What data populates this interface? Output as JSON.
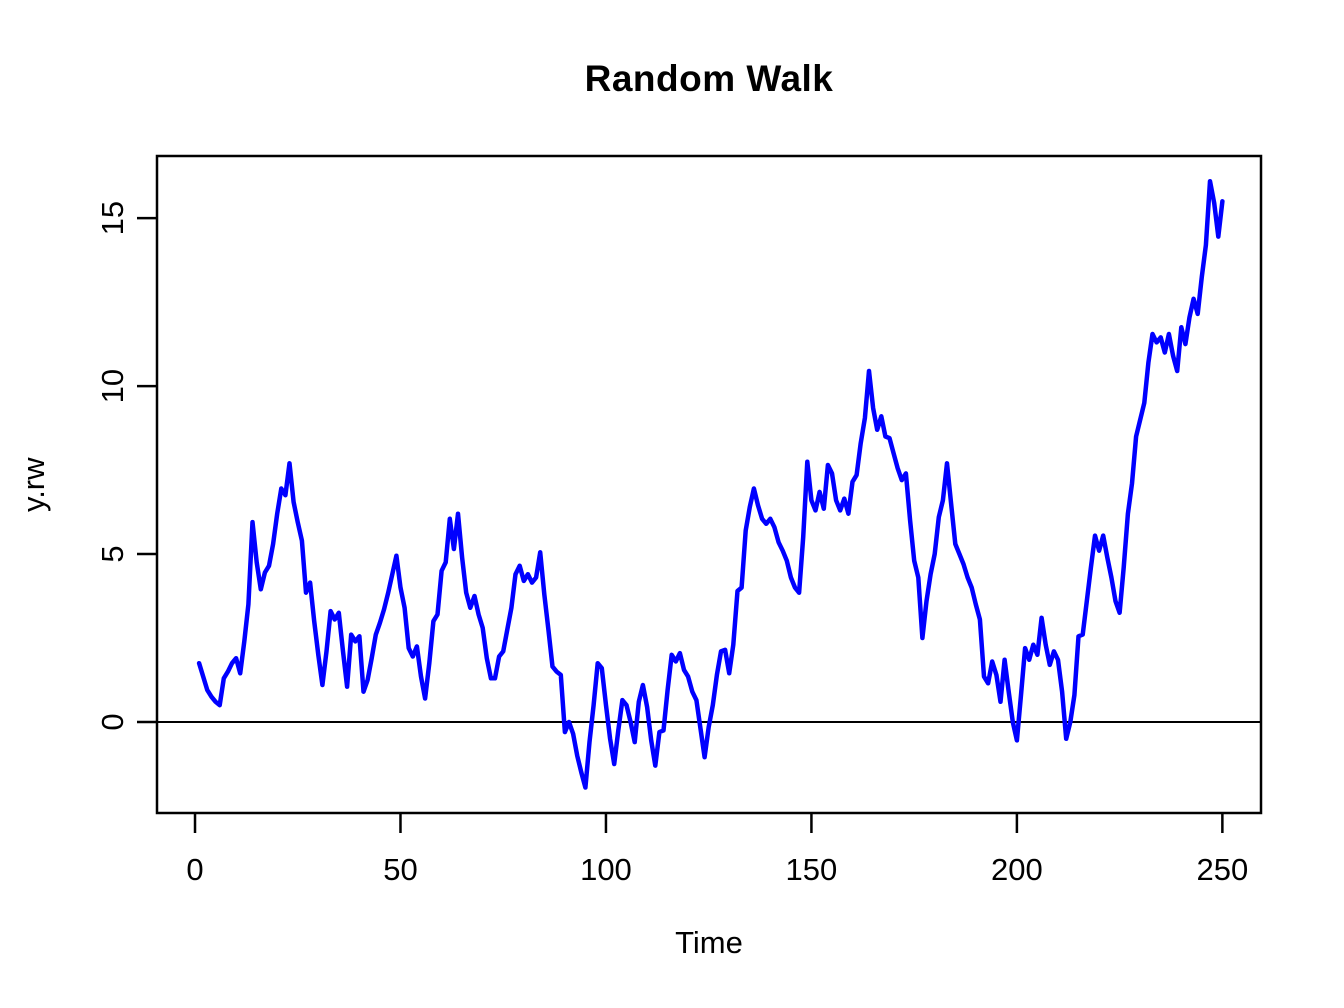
{
  "title": "Random Walk",
  "axes": {
    "x_label": "Time",
    "y_label": "y.rw",
    "x_ticks": [
      0,
      50,
      100,
      150,
      200,
      250
    ],
    "y_ticks": [
      0,
      5,
      10,
      15
    ]
  },
  "styles": {
    "line_color": "#0000FF",
    "axis_color": "#000000",
    "background": "#FFFFFF"
  },
  "chart_data": {
    "type": "line",
    "title": "Random Walk",
    "xlabel": "Time",
    "ylabel": "y.rw",
    "legend": "none",
    "grid": false,
    "x_ticks": [
      0,
      50,
      100,
      150,
      200,
      250
    ],
    "y_ticks": [
      0,
      5,
      10,
      15
    ],
    "xlim": [
      -9.25,
      259.4
    ],
    "ylim": [
      -2.71,
      16.85
    ],
    "hline_y": 0,
    "x_start": 1,
    "x_step": 1,
    "n_points": 250,
    "series": [
      {
        "name": "y.rw",
        "color": "#0000FF",
        "values": [
          1.75,
          1.35,
          0.95,
          0.75,
          0.6,
          0.5,
          1.3,
          1.5,
          1.75,
          1.9,
          1.45,
          2.4,
          3.5,
          5.95,
          4.75,
          3.95,
          4.45,
          4.65,
          5.3,
          6.2,
          6.95,
          6.75,
          7.7,
          6.55,
          5.95,
          5.4,
          3.85,
          4.15,
          3.0,
          2.0,
          1.1,
          2.1,
          3.3,
          3.05,
          3.25,
          2.1,
          1.05,
          2.6,
          2.4,
          2.55,
          0.9,
          1.25,
          1.9,
          2.6,
          2.95,
          3.35,
          3.85,
          4.4,
          4.95,
          4.0,
          3.4,
          2.2,
          1.95,
          2.25,
          1.35,
          0.7,
          1.75,
          3.0,
          3.2,
          4.5,
          4.75,
          6.05,
          5.15,
          6.2,
          4.9,
          3.85,
          3.4,
          3.75,
          3.2,
          2.8,
          1.9,
          1.3,
          1.3,
          1.95,
          2.1,
          2.75,
          3.4,
          4.4,
          4.65,
          4.2,
          4.4,
          4.15,
          4.3,
          5.05,
          3.8,
          2.75,
          1.65,
          1.5,
          1.4,
          -0.3,
          0.0,
          -0.35,
          -1.0,
          -1.5,
          -1.95,
          -0.6,
          0.5,
          1.75,
          1.6,
          0.5,
          -0.5,
          -1.25,
          -0.25,
          0.65,
          0.5,
          0.0,
          -0.6,
          0.6,
          1.1,
          0.45,
          -0.55,
          -1.3,
          -0.3,
          -0.25,
          0.95,
          2.0,
          1.8,
          2.05,
          1.55,
          1.35,
          0.9,
          0.65,
          -0.2,
          -1.05,
          -0.15,
          0.5,
          1.4,
          2.1,
          2.15,
          1.45,
          2.3,
          3.9,
          4.0,
          5.7,
          6.4,
          6.95,
          6.45,
          6.05,
          5.9,
          6.05,
          5.8,
          5.35,
          5.1,
          4.8,
          4.3,
          4.0,
          3.85,
          5.5,
          7.75,
          6.6,
          6.3,
          6.85,
          6.35,
          7.65,
          7.4,
          6.6,
          6.3,
          6.65,
          6.2,
          7.15,
          7.35,
          8.3,
          9.05,
          10.45,
          9.35,
          8.7,
          9.1,
          8.5,
          8.45,
          8.0,
          7.55,
          7.2,
          7.4,
          6.0,
          4.8,
          4.3,
          2.5,
          3.6,
          4.4,
          5.0,
          6.1,
          6.6,
          7.7,
          6.5,
          5.3,
          5.0,
          4.7,
          4.3,
          4.0,
          3.5,
          3.05,
          1.35,
          1.15,
          1.8,
          1.4,
          0.6,
          1.85,
          0.9,
          0.0,
          -0.55,
          0.8,
          2.2,
          1.85,
          2.3,
          2.0,
          3.1,
          2.3,
          1.7,
          2.1,
          1.85,
          0.9,
          -0.5,
          0.0,
          0.8,
          2.55,
          2.6,
          3.6,
          4.6,
          5.55,
          5.1,
          5.55,
          4.9,
          4.3,
          3.6,
          3.25,
          4.6,
          6.2,
          7.1,
          8.5,
          9.0,
          9.5,
          10.7,
          11.55,
          11.3,
          11.45,
          11.0,
          11.55,
          10.9,
          10.45,
          11.75,
          11.25,
          12.05,
          12.6,
          12.15,
          13.25,
          14.2,
          16.1,
          15.45,
          14.45,
          15.5
        ]
      }
    ]
  }
}
